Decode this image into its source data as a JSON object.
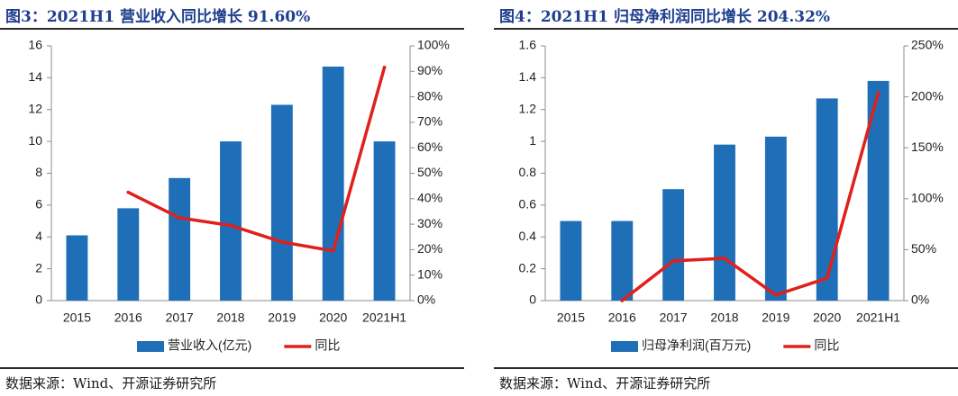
{
  "figures": [
    {
      "title": "图3：2021H1 营业收入同比增长 91.60%",
      "source": "数据来源：Wind、开源证券研究所"
    },
    {
      "title": "图4：2021H1 归母净利润同比增长 204.32%",
      "source": "数据来源：Wind、开源证券研究所"
    }
  ],
  "chart_data": [
    {
      "type": "bar",
      "title": "",
      "categories": [
        "2015",
        "2016",
        "2017",
        "2018",
        "2019",
        "2020",
        "2021H1"
      ],
      "series": [
        {
          "name": "营业收入(亿元)",
          "type": "bar",
          "axis": "left",
          "color": "#1f6fb8",
          "values": [
            4.1,
            5.8,
            7.7,
            10.0,
            12.3,
            14.7,
            10.0
          ]
        },
        {
          "name": "同比",
          "type": "line",
          "axis": "right",
          "color": "#e0201b",
          "values": [
            null,
            0.425,
            0.325,
            0.295,
            0.23,
            0.195,
            0.916
          ]
        }
      ],
      "yleft": {
        "lim": [
          0,
          16
        ],
        "ticks": [
          0,
          2,
          4,
          6,
          8,
          10,
          12,
          14,
          16
        ],
        "tick_labels": [
          "0",
          "2",
          "4",
          "6",
          "8",
          "10",
          "12",
          "14",
          "16"
        ]
      },
      "yright": {
        "lim": [
          0,
          1
        ],
        "ticks": [
          0,
          0.1,
          0.2,
          0.3,
          0.4,
          0.5,
          0.6,
          0.7,
          0.8,
          0.9,
          1.0
        ],
        "tick_labels": [
          "0%",
          "10%",
          "20%",
          "30%",
          "40%",
          "50%",
          "60%",
          "70%",
          "80%",
          "90%",
          "100%"
        ]
      },
      "grid": false,
      "legend": "bottom"
    },
    {
      "type": "bar",
      "title": "",
      "categories": [
        "2015",
        "2016",
        "2017",
        "2018",
        "2019",
        "2020",
        "2021H1"
      ],
      "series": [
        {
          "name": "归母净利润(百万元)",
          "type": "bar",
          "axis": "left",
          "color": "#1f6fb8",
          "values": [
            0.5,
            0.5,
            0.7,
            0.98,
            1.03,
            1.27,
            1.38
          ]
        },
        {
          "name": "同比",
          "type": "line",
          "axis": "right",
          "color": "#e0201b",
          "values": [
            null,
            0.0,
            0.39,
            0.415,
            0.055,
            0.22,
            2.04
          ]
        }
      ],
      "yleft": {
        "lim": [
          0,
          1.6
        ],
        "ticks": [
          0,
          0.2,
          0.4,
          0.6,
          0.8,
          1.0,
          1.2,
          1.4,
          1.6
        ],
        "tick_labels": [
          "0",
          "0.2",
          "0.4",
          "0.6",
          "0.8",
          "1",
          "1.2",
          "1.4",
          "1.6"
        ]
      },
      "yright": {
        "lim": [
          0,
          2.5
        ],
        "ticks": [
          0,
          0.5,
          1.0,
          1.5,
          2.0,
          2.5
        ],
        "tick_labels": [
          "0%",
          "50%",
          "100%",
          "150%",
          "200%",
          "250%"
        ]
      },
      "grid": false,
      "legend": "bottom"
    }
  ]
}
